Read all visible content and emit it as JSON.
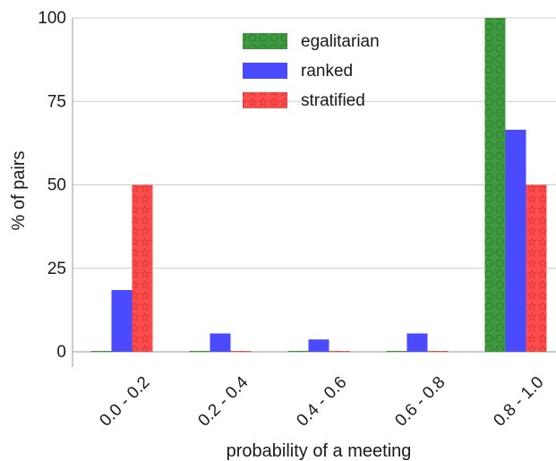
{
  "chart_data": {
    "type": "bar",
    "categories": [
      "0.0 - 0.2",
      "0.2 - 0.4",
      "0.4 - 0.6",
      "0.6 - 0.8",
      "0.8 - 1.0"
    ],
    "series": [
      {
        "name": "egalitarian",
        "values": [
          0,
          0,
          0,
          0,
          100
        ],
        "color": "#3e9a3e",
        "hatch": "circles"
      },
      {
        "name": "ranked",
        "values": [
          18.5,
          5.5,
          3.7,
          5.5,
          66.5
        ],
        "color": "#4a4aff",
        "hatch": "none"
      },
      {
        "name": "stratified",
        "values": [
          50,
          0,
          0,
          0,
          50
        ],
        "color": "#ff4d4d",
        "hatch": "stars"
      }
    ],
    "title": "",
    "xlabel": "probability of a meeting",
    "ylabel": "% of pairs",
    "ylim": [
      0,
      100
    ],
    "yticks": [
      0,
      25,
      50,
      75,
      100
    ],
    "grid": "horizontal",
    "legend_position": "top-center"
  }
}
